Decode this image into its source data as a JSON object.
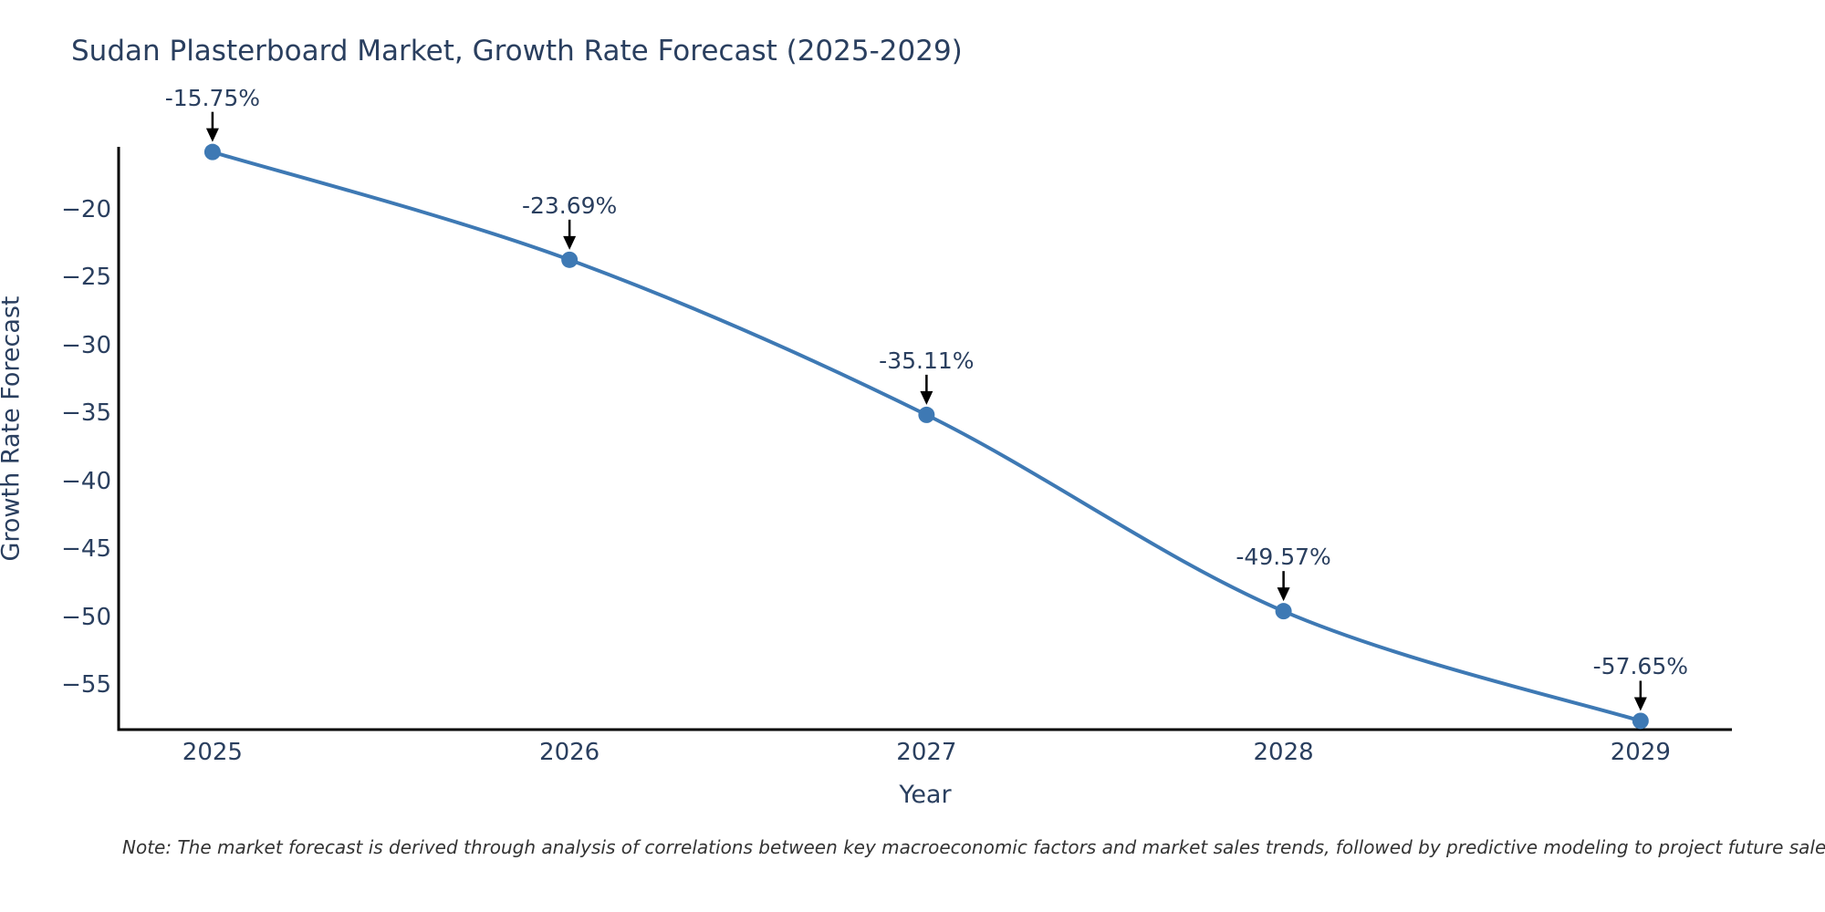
{
  "chart_data": {
    "type": "line",
    "line_shape": "spline",
    "title": "Sudan Plasterboard Market, Growth Rate Forecast (2025-2029)",
    "xlabel": "Year",
    "ylabel": "Growth Rate Forecast",
    "x": [
      2025,
      2026,
      2027,
      2028,
      2029
    ],
    "values": [
      -15.75,
      -23.69,
      -35.11,
      -49.57,
      -57.65
    ],
    "point_labels": [
      "-15.75%",
      "-23.69%",
      "-35.11%",
      "-49.57%",
      "-57.65%"
    ],
    "x_tick_labels": [
      "2025",
      "2026",
      "2027",
      "2028",
      "2029"
    ],
    "x_tick_values": [
      2025,
      2026,
      2027,
      2028,
      2029
    ],
    "y_tick_labels": [
      "−20",
      "−25",
      "−30",
      "−35",
      "−40",
      "−45",
      "−50",
      "−55"
    ],
    "y_tick_values": [
      -20,
      -25,
      -30,
      -35,
      -40,
      -45,
      -50,
      -55
    ],
    "xlim": [
      2024.737,
      2029.256
    ],
    "ylim": [
      -58.29,
      -15.37
    ],
    "grid": false,
    "legend": "none",
    "colors": {
      "line": "#3e79b4",
      "marker": "#3e79b4",
      "axis": "#000000",
      "text": "#2a3f5f",
      "arrow": "#000000",
      "note": "#333333"
    }
  },
  "footnote": {
    "text": "Note: The market forecast is derived through analysis of correlations between key macroeconomic factors and market sales trends, followed by predictive modeling to project future sales"
  }
}
